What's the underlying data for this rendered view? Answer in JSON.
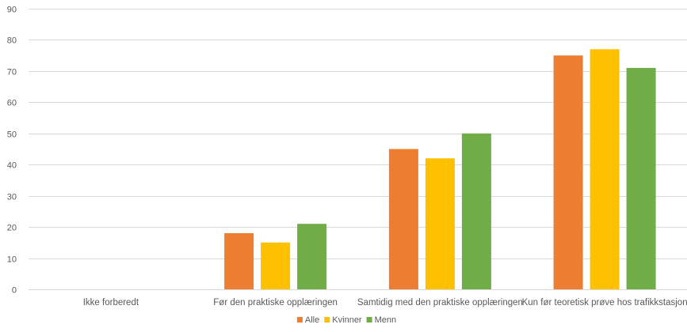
{
  "chart_data": {
    "type": "bar",
    "title": "",
    "xlabel": "",
    "ylabel": "",
    "categories": [
      "Ikke forberedt",
      "Før den praktiske opplæringen",
      "Samtidig med den praktiske opplæringen",
      "Kun før teoretisk prøve hos trafikkstasjon"
    ],
    "series": [
      {
        "name": "Alle",
        "color": "#ED7D31",
        "values": [
          0,
          18,
          45,
          75
        ]
      },
      {
        "name": "Kvinner",
        "color": "#FFC000",
        "values": [
          0,
          15,
          42,
          77
        ]
      },
      {
        "name": "Menn",
        "color": "#70AD47",
        "values": [
          0,
          21,
          50,
          71
        ]
      }
    ],
    "ylim": [
      0,
      90
    ],
    "yticks": [
      0,
      10,
      20,
      30,
      40,
      50,
      60,
      70,
      80,
      90
    ],
    "grid": true,
    "legend_position": "bottom"
  }
}
